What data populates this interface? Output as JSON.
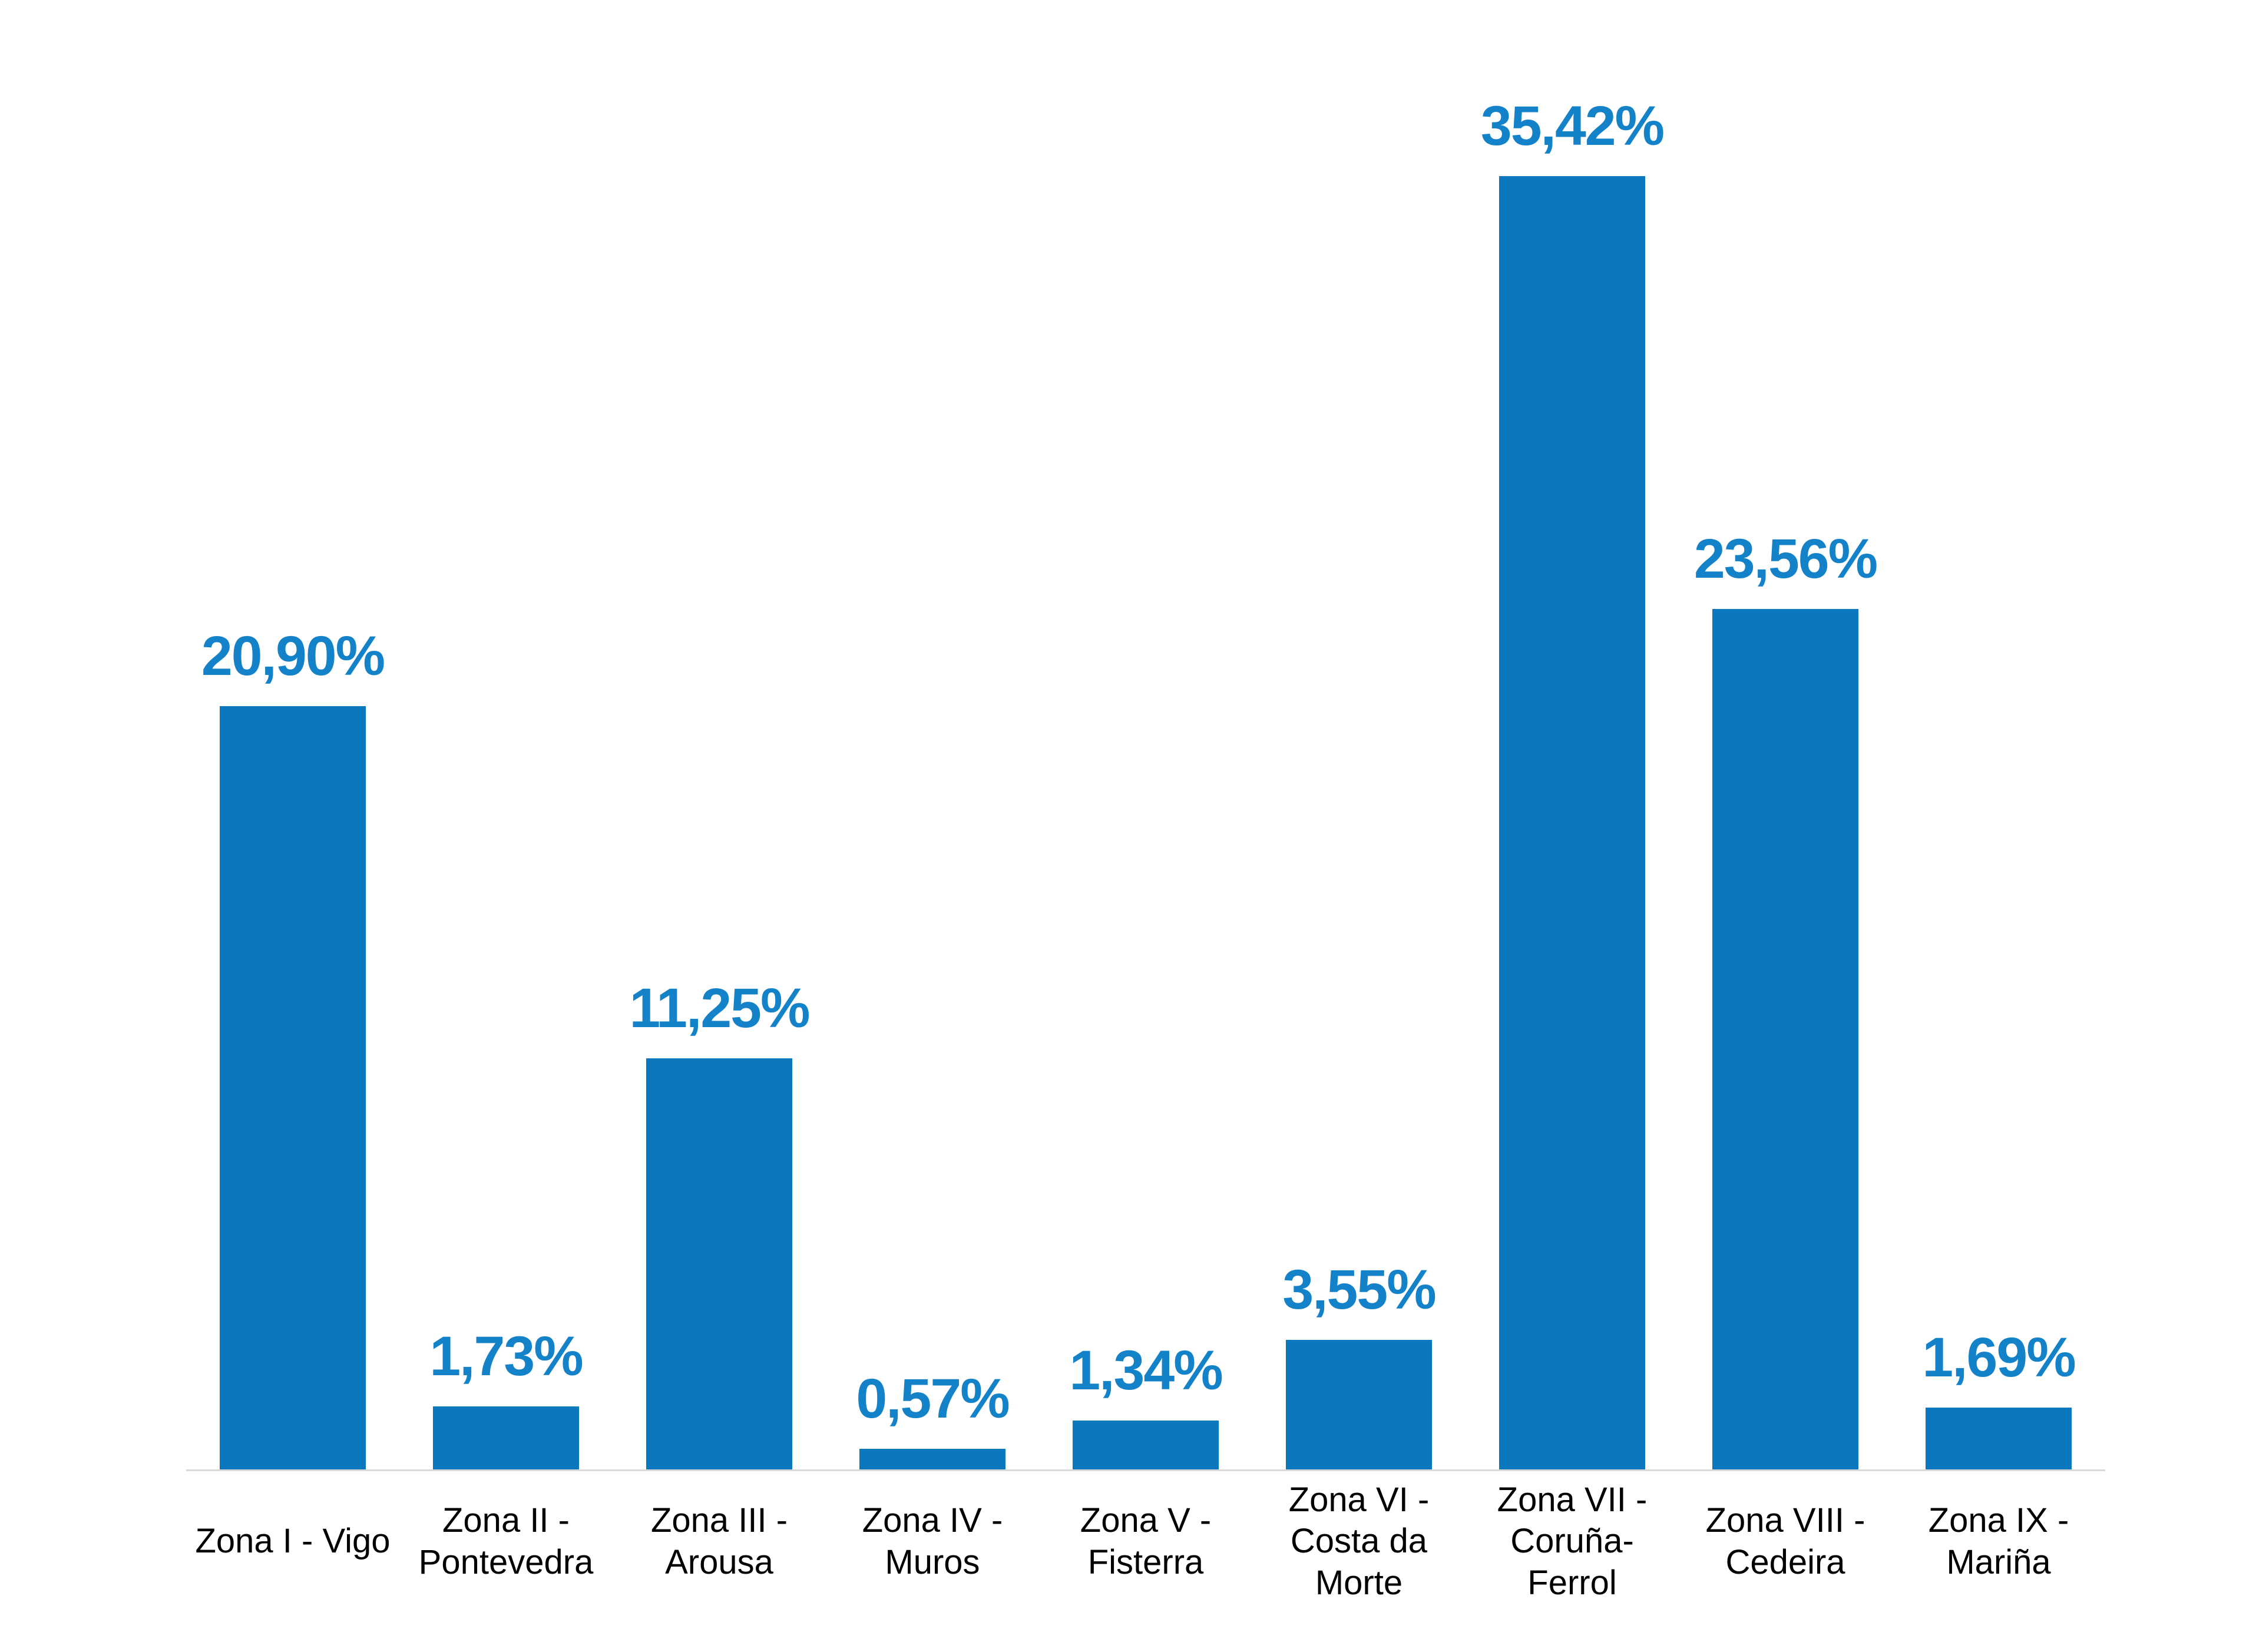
{
  "chart_data": {
    "type": "bar",
    "title": "",
    "xlabel": "",
    "ylabel": "",
    "categories": [
      "Zona I - Vigo",
      "Zona II -\nPontevedra",
      "Zona III -\nArousa",
      "Zona IV -\nMuros",
      "Zona V -\nFisterra",
      "Zona VI -\nCosta da\nMorte",
      "Zona VII -\nCoruña-\nFerrol",
      "Zona VIII -\nCedeira",
      "Zona IX -\nMariña"
    ],
    "values": [
      20.9,
      1.73,
      11.25,
      0.57,
      1.34,
      3.55,
      35.42,
      23.56,
      1.69
    ],
    "value_labels": [
      "20,90%",
      "1,73%",
      "11,25%",
      "0,57%",
      "1,34%",
      "3,55%",
      "35,42%",
      "23,56%",
      "1,69%"
    ],
    "ylim": [
      0,
      40
    ],
    "grid": false,
    "legend": false,
    "bar_color": "#0B78BE",
    "value_label_color": "#1482C9",
    "category_label_color": "#000000",
    "axis_line_color": "#D9D9D9"
  }
}
